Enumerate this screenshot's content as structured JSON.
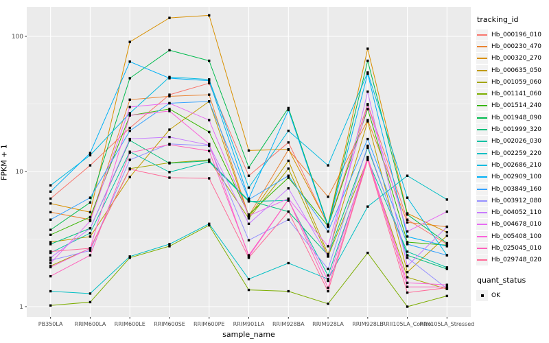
{
  "chart_data": {
    "type": "line",
    "title": "",
    "xlabel": "sample_name",
    "ylabel": "FPKM + 1",
    "y_scale": "log10",
    "y_ticks": [
      "1",
      "10",
      "100"
    ],
    "y_tick_values": [
      1,
      10,
      100
    ],
    "y_minor_values": [
      3.1623,
      31.623
    ],
    "ylim": [
      0.85,
      170
    ],
    "grid": "on",
    "legend_position": "right",
    "legend_title": "tracking_id",
    "legend2_title": "quant_status",
    "quant_status_label": "OK",
    "point_shape": "filled-square",
    "colors": {
      "panel_bg": "#EBEBEB",
      "grid": "#FFFFFF",
      "axis_text": "#4D4D4D",
      "tick_mark": "#333333",
      "point": "#000000",
      "legend_key_bg": "#F2F2F2"
    },
    "categories": [
      "PB350LA",
      "RRIM600LA",
      "RRIM600LE",
      "RRIM600SE",
      "RRIM600PE",
      "RRIM901LA",
      "RRIM928BA",
      "RRIM928LA",
      "RRIM928LE",
      "RRII105LA_Control",
      "RRII105LA_Stressed"
    ],
    "series": [
      {
        "name": "Hb_000196_010",
        "color": "#F8766D",
        "values": [
          6.3,
          11.1,
          21,
          37,
          45,
          9.3,
          16.4,
          4.0,
          31.5,
          4.4,
          2.9
        ]
      },
      {
        "name": "Hb_000230_470",
        "color": "#EA8331",
        "values": [
          5.0,
          4.4,
          34,
          36,
          37,
          4.7,
          14.5,
          6.5,
          24,
          4.2,
          3.9
        ]
      },
      {
        "name": "Hb_000320_270",
        "color": "#D89000",
        "values": [
          5.8,
          5.0,
          91,
          137,
          143,
          14.3,
          14.6,
          4.05,
          81,
          4.9,
          3.55
        ]
      },
      {
        "name": "Hb_000635_050",
        "color": "#C09B00",
        "values": [
          3.0,
          3.3,
          9.1,
          20.4,
          33,
          4.6,
          12,
          2.45,
          23.5,
          1.8,
          3.35
        ]
      },
      {
        "name": "Hb_001059_060",
        "color": "#A3A500",
        "values": [
          2.0,
          2.7,
          10.5,
          11.6,
          12.2,
          4.5,
          10.5,
          2.35,
          12.3,
          1.65,
          1.35
        ]
      },
      {
        "name": "Hb_001141_060",
        "color": "#7CAE00",
        "values": [
          1.02,
          1.08,
          2.3,
          2.8,
          4.0,
          1.33,
          1.3,
          1.05,
          2.5,
          1.0,
          1.2
        ]
      },
      {
        "name": "Hb_001514_240",
        "color": "#39B600",
        "values": [
          3.4,
          4.6,
          26,
          29,
          19.6,
          4.8,
          9.0,
          3.95,
          29,
          3.0,
          2.85
        ]
      },
      {
        "name": "Hb_001948_090",
        "color": "#00BB4E",
        "values": [
          3.7,
          5.9,
          49,
          79,
          66,
          10.7,
          29.5,
          4.0,
          66,
          4.8,
          2.95
        ]
      },
      {
        "name": "Hb_001999_320",
        "color": "#00BF7D",
        "values": [
          2.9,
          3.8,
          17,
          11.5,
          12,
          6.1,
          5.05,
          2.4,
          15,
          2.4,
          1.9
        ]
      },
      {
        "name": "Hb_002026_030",
        "color": "#00C1A3",
        "values": [
          2.5,
          3.5,
          14,
          9.9,
          11.8,
          6.0,
          6.1,
          1.7,
          12.2,
          2.55,
          1.95
        ]
      },
      {
        "name": "Hb_002259_220",
        "color": "#00BFC4",
        "values": [
          1.3,
          1.25,
          2.35,
          2.9,
          4.1,
          1.6,
          2.1,
          1.6,
          5.5,
          9.3,
          6.2
        ]
      },
      {
        "name": "Hb_002686_210",
        "color": "#00BAE0",
        "values": [
          7.9,
          13.2,
          27,
          50,
          48,
          7.6,
          20,
          11.1,
          54,
          6.4,
          2.4
        ]
      },
      {
        "name": "Hb_002909_100",
        "color": "#00B0F6",
        "values": [
          7.1,
          13.7,
          65,
          49,
          47,
          6.3,
          28.5,
          3.9,
          53,
          3.3,
          2.8
        ]
      },
      {
        "name": "Hb_003849_160",
        "color": "#35A2FF",
        "values": [
          4.4,
          6.4,
          20,
          32,
          33,
          6.2,
          9.3,
          3.6,
          17.4,
          2.9,
          2.4
        ]
      },
      {
        "name": "Hb_003912_080",
        "color": "#9590FF",
        "values": [
          2.2,
          2.6,
          12.2,
          16,
          15.5,
          3.1,
          4.4,
          1.9,
          15.5,
          2.3,
          1.36
        ]
      },
      {
        "name": "Hb_004052_110",
        "color": "#C77CFF",
        "values": [
          2.3,
          3.8,
          17.4,
          18,
          15.7,
          4.1,
          7.5,
          2.35,
          39,
          2.0,
          3.9
        ]
      },
      {
        "name": "Hb_004678_010",
        "color": "#E76BF3",
        "values": [
          2.1,
          4.3,
          30,
          32,
          24,
          4.7,
          6.3,
          2.8,
          31,
          3.6,
          5.05
        ]
      },
      {
        "name": "Hb_005408_100",
        "color": "#FA62DB",
        "values": [
          1.96,
          2.7,
          26,
          28,
          16,
          2.35,
          6.2,
          1.55,
          12.8,
          1.5,
          1.45
        ]
      },
      {
        "name": "Hb_025045_010",
        "color": "#FF62BC",
        "values": [
          1.68,
          2.4,
          13.8,
          15.8,
          14.2,
          2.4,
          6.2,
          1.38,
          12.5,
          1.4,
          1.4
        ]
      },
      {
        "name": "Hb_029748_020",
        "color": "#FF6A98",
        "values": [
          2.56,
          2.7,
          10.4,
          9.0,
          8.9,
          2.3,
          5.05,
          1.3,
          12.2,
          1.27,
          1.38
        ]
      }
    ]
  }
}
